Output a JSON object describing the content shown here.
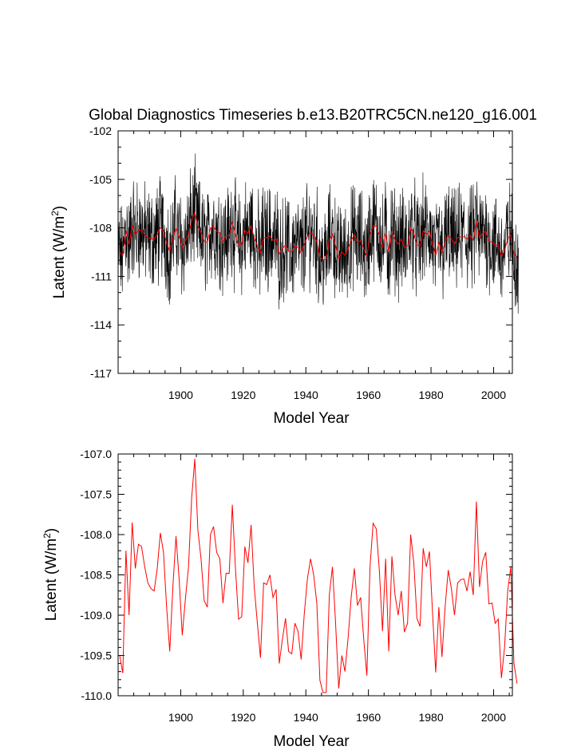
{
  "title": "Global Diagnostics Timeseries b.e13.B20TRC5CN.ne120_g16.001",
  "colors": {
    "monthly": "#000000",
    "annual": "#ff0000",
    "axis": "#000000"
  },
  "chart_data": [
    {
      "type": "line",
      "title": "Global Diagnostics Timeseries b.e13.B20TRC5CN.ne120_g16.001",
      "xlabel": "Model Year",
      "ylabel": "Latent (W/m",
      "ylabel_sup": "2",
      "ylabel_close": ")",
      "xlim": [
        1880,
        2006
      ],
      "ylim": [
        -117,
        -102
      ],
      "xticks": [
        "1900",
        "1920",
        "1940",
        "1960",
        "1980",
        "2000"
      ],
      "yticks": [
        "-102",
        "-105",
        "-108",
        "-111",
        "-114",
        "-117"
      ],
      "series": [
        {
          "name": "",
          "color": "#000000",
          "resolution": "monthly"
        },
        {
          "name": "",
          "color": "#ff0000",
          "resolution": "annual"
        }
      ]
    },
    {
      "type": "line",
      "xlabel": "Model Year",
      "ylabel": "Latent (W/m",
      "ylabel_sup": "2",
      "ylabel_close": ")",
      "xlim": [
        1880,
        2006
      ],
      "ylim": [
        -110.0,
        -107.0
      ],
      "xticks": [
        "1900",
        "1920",
        "1940",
        "1960",
        "1980",
        "2000"
      ],
      "yticks": [
        "-107.0",
        "-107.5",
        "-108.0",
        "-108.5",
        "-109.0",
        "-109.5",
        "-110.0"
      ],
      "series": [
        {
          "name": "",
          "color": "#ff0000",
          "resolution": "annual"
        }
      ]
    }
  ],
  "annual_x_start": 1880,
  "annual_values": [
    -109.5,
    -109.72,
    -108.2,
    -109.0,
    -107.85,
    -108.42,
    -108.12,
    -108.15,
    -108.4,
    -108.6,
    -108.67,
    -108.7,
    -108.42,
    -107.98,
    -108.22,
    -108.9,
    -109.45,
    -108.65,
    -108.02,
    -108.55,
    -109.25,
    -108.8,
    -108.4,
    -107.55,
    -107.06,
    -107.95,
    -108.3,
    -108.82,
    -108.9,
    -108.0,
    -107.9,
    -108.22,
    -108.3,
    -108.85,
    -108.48,
    -108.48,
    -107.63,
    -108.42,
    -109.05,
    -109.02,
    -108.15,
    -108.35,
    -107.88,
    -108.65,
    -109.1,
    -109.53,
    -108.6,
    -108.62,
    -108.5,
    -108.78,
    -108.68,
    -109.6,
    -109.3,
    -109.04,
    -109.45,
    -109.48,
    -109.1,
    -109.2,
    -109.55,
    -108.98,
    -108.55,
    -108.3,
    -108.5,
    -108.85,
    -109.81,
    -109.96,
    -109.96,
    -108.75,
    -108.4,
    -109.1,
    -109.91,
    -109.5,
    -109.7,
    -109.28,
    -108.77,
    -108.42,
    -108.88,
    -108.78,
    -109.3,
    -109.75,
    -108.4,
    -107.86,
    -107.93,
    -108.45,
    -109.2,
    -108.3,
    -109.45,
    -108.27,
    -108.75,
    -109.0,
    -108.7,
    -109.21,
    -109.1,
    -108.0,
    -108.35,
    -109.04,
    -109.14,
    -108.17,
    -108.4,
    -108.21,
    -108.98,
    -109.71,
    -108.9,
    -109.52,
    -108.9,
    -108.44,
    -108.67,
    -109.0,
    -108.6,
    -108.56,
    -108.55,
    -108.7,
    -108.46,
    -108.75,
    -107.59,
    -108.65,
    -108.33,
    -108.22,
    -108.86,
    -108.85,
    -109.1,
    -109.05,
    -109.78,
    -109.4,
    -108.7,
    -108.4,
    -109.6,
    -109.85
  ]
}
